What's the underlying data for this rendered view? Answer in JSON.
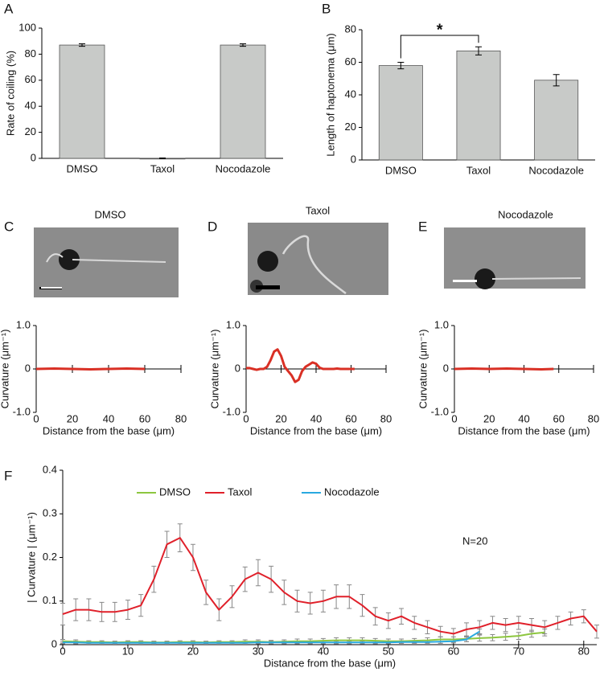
{
  "chart_data": [
    {
      "type": "bar",
      "panel": "A",
      "ylabel": "Rate of coiling (%)",
      "categories": [
        "DMSO",
        "Taxol",
        "Nocodazole"
      ],
      "values": [
        87,
        0,
        87
      ],
      "errors": [
        1,
        0.3,
        1
      ],
      "color": "#c8cac8",
      "ylim": [
        0,
        100
      ],
      "yticks": [
        0,
        20,
        40,
        60,
        80,
        100
      ]
    },
    {
      "type": "bar",
      "panel": "B",
      "ylabel": "Length of haptonema (μm)",
      "categories": [
        "DMSO",
        "Taxol",
        "Nocodazole"
      ],
      "values": [
        58,
        67,
        49
      ],
      "errors": [
        2,
        2.5,
        3.5
      ],
      "color": "#c8cac8",
      "ylim": [
        0,
        80
      ],
      "yticks": [
        0,
        20,
        40,
        60,
        80
      ],
      "annotation": "*"
    },
    {
      "type": "line",
      "panel": "C",
      "title": "DMSO",
      "ylabel": "Curvature (μm⁻¹)",
      "xlabel": "Distance from the base (μm)",
      "x": [
        0,
        10,
        20,
        30,
        40,
        50,
        60
      ],
      "values": [
        0,
        0.01,
        0,
        -0.01,
        0,
        0.01,
        0
      ],
      "color": "#d93025",
      "xlim": [
        0,
        80
      ],
      "xticks": [
        0,
        20,
        40,
        60,
        80
      ],
      "ylim": [
        -1,
        1
      ],
      "yticks": [
        {
          "value": -1,
          "label": "-1.0"
        },
        0,
        {
          "value": 1,
          "label": "1.0"
        }
      ]
    },
    {
      "type": "line",
      "panel": "D",
      "title": "Taxol",
      "ylabel": "Curvature (μm⁻¹)",
      "xlabel": "Distance from the base (μm)",
      "x": [
        0,
        2,
        4,
        6,
        8,
        10,
        12,
        14,
        16,
        18,
        20,
        22,
        24,
        26,
        28,
        30,
        32,
        34,
        36,
        38,
        40,
        42,
        44,
        46,
        48,
        50,
        52,
        54,
        56,
        58,
        60,
        62
      ],
      "values": [
        0.02,
        0.02,
        0,
        -0.02,
        0,
        0,
        0.05,
        0.2,
        0.4,
        0.45,
        0.3,
        0.05,
        -0.05,
        -0.15,
        -0.3,
        -0.25,
        -0.05,
        0.05,
        0.1,
        0.15,
        0.12,
        0.03,
        0,
        0,
        0,
        0,
        0.01,
        0,
        0,
        0,
        0,
        0
      ],
      "color": "#d93025",
      "xlim": [
        0,
        80
      ],
      "xticks": [
        0,
        20,
        40,
        60,
        80
      ],
      "ylim": [
        -1,
        1
      ],
      "yticks": [
        {
          "value": -1,
          "label": "-1.0"
        },
        0,
        {
          "value": 1,
          "label": "1.0"
        }
      ]
    },
    {
      "type": "line",
      "panel": "E",
      "title": "Nocodazole",
      "ylabel": "Curvature (μm⁻¹)",
      "xlabel": "Distance from the base (μm)",
      "x": [
        0,
        10,
        20,
        30,
        40,
        50,
        57
      ],
      "values": [
        0,
        0.01,
        0,
        0.01,
        0,
        -0.01,
        0
      ],
      "color": "#d93025",
      "xlim": [
        0,
        80
      ],
      "xticks": [
        0,
        20,
        40,
        60,
        80
      ],
      "ylim": [
        -1,
        1
      ],
      "yticks": [
        {
          "value": -1,
          "label": "-1.0"
        },
        0,
        {
          "value": 1,
          "label": "1.0"
        }
      ]
    },
    {
      "type": "errorline",
      "panel": "F",
      "ylabel": "| Curvature | (μm⁻¹)",
      "xlabel": "Distance from the base (μm)",
      "annotation": "N=20",
      "x": [
        0,
        2,
        4,
        6,
        8,
        10,
        12,
        14,
        16,
        18,
        20,
        22,
        24,
        26,
        28,
        30,
        32,
        34,
        36,
        38,
        40,
        42,
        44,
        46,
        48,
        50,
        52,
        54,
        56,
        58,
        60,
        62,
        64,
        66,
        68,
        70,
        72,
        74,
        76,
        78,
        80,
        82
      ],
      "series": [
        {
          "name": "DMSO",
          "color": "#8dc63f",
          "values": [
            0.008,
            0.007,
            0.006,
            0.006,
            0.005,
            0.006,
            0.006,
            0.005,
            0.005,
            0.006,
            0.006,
            0.005,
            0.006,
            0.006,
            0.007,
            0.007,
            0.006,
            0.007,
            0.008,
            0.008,
            0.009,
            0.01,
            0.01,
            0.01,
            0.009,
            0.008,
            0.008,
            0.009,
            0.01,
            0.012,
            0.012,
            0.013,
            0.015,
            0.016,
            0.018,
            0.02,
            0.025,
            0.028,
            null,
            null,
            null,
            null
          ],
          "errors": [
            0.004,
            0.004,
            0.003,
            0.003,
            0.003,
            0.003,
            0.003,
            0.003,
            0.003,
            0.003,
            0.003,
            0.003,
            0.003,
            0.003,
            0.004,
            0.004,
            0.004,
            0.004,
            0.005,
            0.005,
            0.005,
            0.006,
            0.006,
            0.006,
            0.005,
            0.005,
            0.005,
            0.005,
            0.006,
            0.006,
            0.006,
            0.006,
            0.007,
            0.007,
            0.008,
            0.008,
            0.008,
            0.008,
            null,
            null,
            null,
            null
          ]
        },
        {
          "name": "Taxol",
          "color": "#e0202a",
          "values": [
            0.07,
            0.08,
            0.08,
            0.075,
            0.075,
            0.08,
            0.09,
            0.15,
            0.23,
            0.245,
            0.2,
            0.12,
            0.08,
            0.11,
            0.15,
            0.165,
            0.15,
            0.12,
            0.1,
            0.095,
            0.1,
            0.11,
            0.11,
            0.09,
            0.065,
            0.055,
            0.065,
            0.05,
            0.04,
            0.03,
            0.025,
            0.035,
            0.04,
            0.05,
            0.045,
            0.05,
            0.045,
            0.04,
            0.05,
            0.06,
            0.065,
            0.03
          ],
          "errors": [
            0.025,
            0.025,
            0.025,
            0.022,
            0.022,
            0.022,
            0.025,
            0.03,
            0.03,
            0.032,
            0.03,
            0.028,
            0.025,
            0.025,
            0.028,
            0.03,
            0.03,
            0.028,
            0.025,
            0.025,
            0.025,
            0.027,
            0.027,
            0.025,
            0.02,
            0.018,
            0.018,
            0.015,
            0.015,
            0.012,
            0.012,
            0.015,
            0.015,
            0.015,
            0.015,
            0.015,
            0.015,
            0.015,
            0.015,
            0.015,
            0.015,
            0.015
          ]
        },
        {
          "name": "Nocodazole",
          "color": "#29a9e0",
          "values": [
            0.005,
            0.005,
            0.004,
            0.004,
            0.004,
            0.004,
            0.004,
            0.004,
            0.004,
            0.004,
            0.004,
            0.004,
            0.004,
            0.004,
            0.004,
            0.005,
            0.005,
            0.005,
            0.005,
            0.005,
            0.005,
            0.005,
            0.005,
            0.005,
            0.005,
            0.005,
            0.006,
            0.006,
            0.006,
            0.007,
            0.008,
            0.012,
            0.03,
            null,
            null,
            null,
            null,
            null,
            null,
            null,
            null,
            null
          ],
          "errors": [
            0.003,
            0.003,
            0.003,
            0.003,
            0.003,
            0.003,
            0.003,
            0.003,
            0.003,
            0.003,
            0.003,
            0.003,
            0.003,
            0.003,
            0.003,
            0.003,
            0.003,
            0.003,
            0.003,
            0.003,
            0.003,
            0.003,
            0.003,
            0.003,
            0.003,
            0.003,
            0.003,
            0.003,
            0.003,
            0.004,
            0.004,
            0.005,
            0.006,
            null,
            null,
            null,
            null,
            null,
            null,
            null,
            null,
            null
          ]
        }
      ],
      "xlim": [
        0,
        82
      ],
      "xticks": [
        0,
        10,
        20,
        30,
        40,
        50,
        60,
        70,
        80
      ],
      "ylim": [
        0,
        0.4
      ],
      "yticks": [
        0,
        0.1,
        0.2,
        0.3,
        0.4
      ]
    }
  ]
}
